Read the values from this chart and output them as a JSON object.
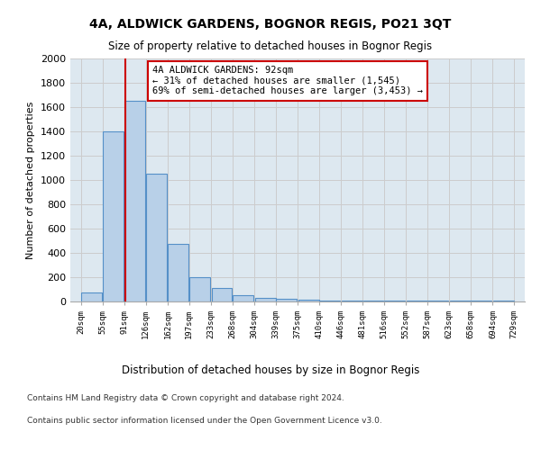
{
  "title": "4A, ALDWICK GARDENS, BOGNOR REGIS, PO21 3QT",
  "subtitle": "Size of property relative to detached houses in Bognor Regis",
  "xlabel": "Distribution of detached houses by size in Bognor Regis",
  "ylabel": "Number of detached properties",
  "footer_line1": "Contains HM Land Registry data © Crown copyright and database right 2024.",
  "footer_line2": "Contains public sector information licensed under the Open Government Licence v3.0.",
  "bin_labels": [
    "20sqm",
    "55sqm",
    "91sqm",
    "126sqm",
    "162sqm",
    "197sqm",
    "233sqm",
    "268sqm",
    "304sqm",
    "339sqm",
    "375sqm",
    "410sqm",
    "446sqm",
    "481sqm",
    "516sqm",
    "552sqm",
    "587sqm",
    "623sqm",
    "658sqm",
    "694sqm",
    "729sqm"
  ],
  "bar_values": [
    75,
    1400,
    1650,
    1050,
    475,
    200,
    110,
    50,
    30,
    20,
    15,
    5,
    5,
    5,
    5,
    5,
    5,
    5,
    5,
    5
  ],
  "bar_color": "#b8d0e8",
  "bar_edge_color": "#5590c8",
  "grid_color": "#cccccc",
  "bg_color": "#dde8f0",
  "annotation_line1": "4A ALDWICK GARDENS: 92sqm",
  "annotation_line2": "← 31% of detached houses are smaller (1,545)",
  "annotation_line3": "69% of semi-detached houses are larger (3,453) →",
  "vline_x": 92,
  "vline_color": "#cc0000",
  "annotation_box_facecolor": "#ffffff",
  "annotation_box_edgecolor": "#cc0000",
  "ylim": [
    0,
    2000
  ],
  "yticks": [
    0,
    200,
    400,
    600,
    800,
    1000,
    1200,
    1400,
    1600,
    1800,
    2000
  ],
  "bin_width": 35,
  "bin_edges": [
    20,
    55,
    91,
    126,
    162,
    197,
    233,
    268,
    304,
    339,
    375,
    410,
    446,
    481,
    516,
    552,
    587,
    623,
    658,
    694,
    729
  ]
}
